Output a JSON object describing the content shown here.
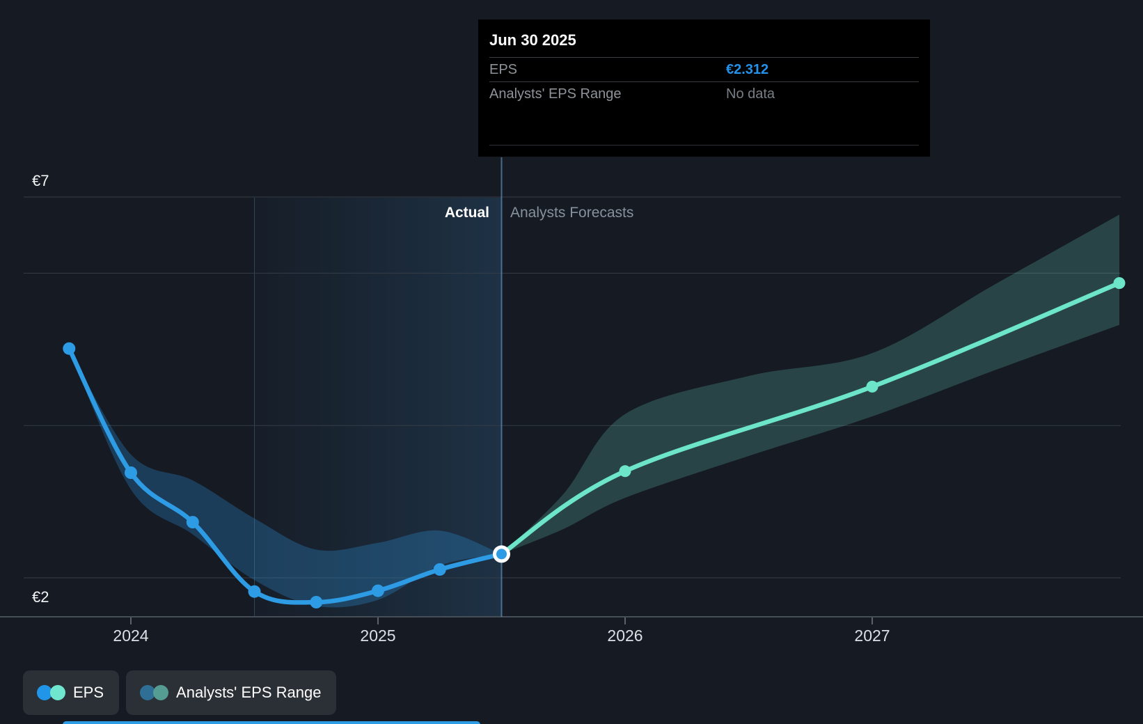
{
  "tooltip": {
    "date": "Jun 30 2025",
    "rows": [
      {
        "label": "EPS",
        "value": "€2.312",
        "style": "accent"
      },
      {
        "label": "Analysts' EPS Range",
        "value": "No data",
        "style": "muted"
      }
    ]
  },
  "zone_labels": {
    "actual": "Actual",
    "forecast": "Analysts Forecasts"
  },
  "legend": [
    {
      "label": "EPS",
      "dot_colors": [
        "#2196E8",
        "#70E6CF"
      ]
    },
    {
      "label": "Analysts' EPS Range",
      "dot_colors": [
        "#2F6F96",
        "#559C92"
      ]
    }
  ],
  "colors": {
    "background": "#151A23",
    "eps_line": "#2E9BE5",
    "eps_band": "rgba(46,155,229,0.28)",
    "forecast_line": "#6CE5C9",
    "forecast_band": "rgba(110,220,195,0.22)",
    "tooltip_accent": "#2491EB",
    "grid": "#353D47",
    "axis": "#454D57",
    "tick": "#5A626C",
    "tick_label": "#DCE0E4",
    "today_line": "rgba(110,160,205,0.6)",
    "highlight_edge": "rgba(125,175,215,0.28)",
    "highlight_fill_from": "rgba(60,120,170,0.04)",
    "highlight_fill_to": "rgba(62,135,190,0.22)"
  },
  "chart_data": {
    "type": "line",
    "currency": "EUR",
    "x_axis": {
      "ticks": [
        2024,
        2025,
        2026,
        2027
      ],
      "range": [
        2023.57,
        2028.0
      ]
    },
    "y_axis": {
      "labeled": [
        {
          "value": 7,
          "label": "€7"
        },
        {
          "value": 2,
          "label": "€2"
        }
      ],
      "gridline_values": [
        7,
        6,
        4,
        2
      ],
      "range": [
        1.4,
        7.0
      ]
    },
    "series": [
      {
        "name": "EPS",
        "kind": "actual",
        "points": [
          {
            "t": 2023.75,
            "v": 5.01
          },
          {
            "t": 2024.0,
            "v": 3.38
          },
          {
            "t": 2024.25,
            "v": 2.73
          },
          {
            "t": 2024.5,
            "v": 1.82
          },
          {
            "t": 2024.75,
            "v": 1.68
          },
          {
            "t": 2025.0,
            "v": 1.83
          },
          {
            "t": 2025.25,
            "v": 2.11
          },
          {
            "t": 2025.5,
            "v": 2.312
          }
        ]
      },
      {
        "name": "EPS analysts forecast",
        "kind": "forecast",
        "points": [
          {
            "t": 2025.5,
            "v": 2.312
          },
          {
            "t": 2026.0,
            "v": 3.4
          },
          {
            "t": 2027.0,
            "v": 4.51
          },
          {
            "t": 2028.0,
            "v": 5.87
          }
        ]
      }
    ],
    "ranges": [
      {
        "name": "EPS range (actual period)",
        "kind": "actual",
        "points": [
          {
            "t": 2023.75,
            "low": 5.01,
            "high": 5.01
          },
          {
            "t": 2024.0,
            "low": 3.16,
            "high": 3.62
          },
          {
            "t": 2024.25,
            "low": 2.57,
            "high": 3.28
          },
          {
            "t": 2024.5,
            "low": 1.97,
            "high": 2.78
          },
          {
            "t": 2024.75,
            "low": 1.63,
            "high": 2.37
          },
          {
            "t": 2025.0,
            "low": 1.71,
            "high": 2.46
          },
          {
            "t": 2025.25,
            "low": 2.16,
            "high": 2.62
          },
          {
            "t": 2025.5,
            "low": 2.312,
            "high": 2.312
          }
        ]
      },
      {
        "name": "Analysts' EPS Range",
        "kind": "forecast",
        "points": [
          {
            "t": 2025.5,
            "low": 2.312,
            "high": 2.312
          },
          {
            "t": 2025.75,
            "low": 2.64,
            "high": 3.1
          },
          {
            "t": 2026.0,
            "low": 3.05,
            "high": 4.15
          },
          {
            "t": 2026.5,
            "low": 3.6,
            "high": 4.65
          },
          {
            "t": 2027.0,
            "low": 4.12,
            "high": 4.95
          },
          {
            "t": 2027.5,
            "low": 4.73,
            "high": 5.86
          },
          {
            "t": 2028.0,
            "low": 5.32,
            "high": 6.77
          }
        ]
      }
    ],
    "today_marker": {
      "t": 2025.5,
      "date": "Jun 30 2025",
      "eps": 2.312
    },
    "highlight_window": {
      "from_t": 2024.5,
      "to_t": 2025.5
    },
    "legend_position": "bottom-left",
    "grid": "on"
  }
}
